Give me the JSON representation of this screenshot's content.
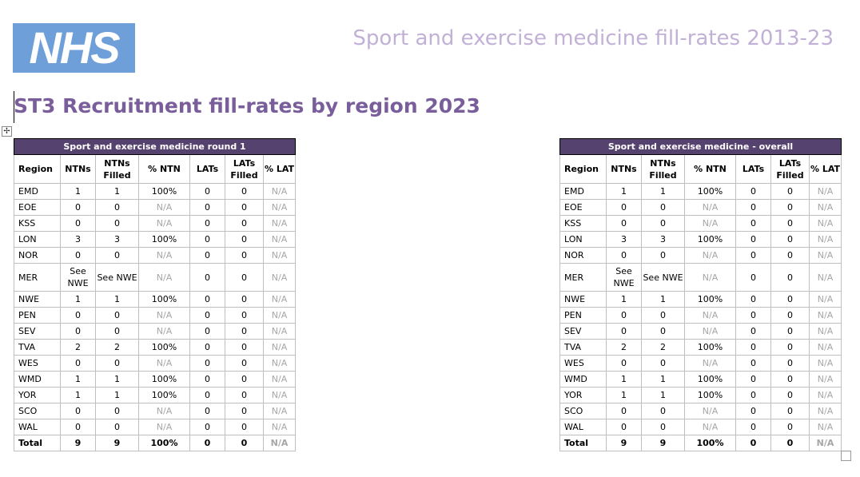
{
  "logo": {
    "text": "NHS",
    "color": "#6f9fd8"
  },
  "header_title": "Sport and exercise medicine fill-rates 2013-23",
  "page_title": "ST3 Recruitment fill-rates by region 2023",
  "columns": [
    "Region",
    "NTNs",
    "NTNs Filled",
    "% NTN",
    "LATs",
    "LATs Filled",
    "% LAT"
  ],
  "tables": [
    {
      "caption": "Sport and exercise medicine round 1",
      "rows": [
        [
          "EMD",
          "1",
          "1",
          "100%",
          "0",
          "0",
          "N/A"
        ],
        [
          "EOE",
          "0",
          "0",
          "N/A",
          "0",
          "0",
          "N/A"
        ],
        [
          "KSS",
          "0",
          "0",
          "N/A",
          "0",
          "0",
          "N/A"
        ],
        [
          "LON",
          "3",
          "3",
          "100%",
          "0",
          "0",
          "N/A"
        ],
        [
          "NOR",
          "0",
          "0",
          "N/A",
          "0",
          "0",
          "N/A"
        ],
        [
          "MER",
          "See NWE",
          "See NWE",
          "N/A",
          "0",
          "0",
          "N/A"
        ],
        [
          "NWE",
          "1",
          "1",
          "100%",
          "0",
          "0",
          "N/A"
        ],
        [
          "PEN",
          "0",
          "0",
          "N/A",
          "0",
          "0",
          "N/A"
        ],
        [
          "SEV",
          "0",
          "0",
          "N/A",
          "0",
          "0",
          "N/A"
        ],
        [
          "TVA",
          "2",
          "2",
          "100%",
          "0",
          "0",
          "N/A"
        ],
        [
          "WES",
          "0",
          "0",
          "N/A",
          "0",
          "0",
          "N/A"
        ],
        [
          "WMD",
          "1",
          "1",
          "100%",
          "0",
          "0",
          "N/A"
        ],
        [
          "YOR",
          "1",
          "1",
          "100%",
          "0",
          "0",
          "N/A"
        ],
        [
          "SCO",
          "0",
          "0",
          "N/A",
          "0",
          "0",
          "N/A"
        ],
        [
          "WAL",
          "0",
          "0",
          "N/A",
          "0",
          "0",
          "N/A"
        ]
      ],
      "total": [
        "Total",
        "9",
        "9",
        "100%",
        "0",
        "0",
        "N/A"
      ]
    },
    {
      "caption": "Sport and exercise medicine - overall",
      "rows": [
        [
          "EMD",
          "1",
          "1",
          "100%",
          "0",
          "0",
          "N/A"
        ],
        [
          "EOE",
          "0",
          "0",
          "N/A",
          "0",
          "0",
          "N/A"
        ],
        [
          "KSS",
          "0",
          "0",
          "N/A",
          "0",
          "0",
          "N/A"
        ],
        [
          "LON",
          "3",
          "3",
          "100%",
          "0",
          "0",
          "N/A"
        ],
        [
          "NOR",
          "0",
          "0",
          "N/A",
          "0",
          "0",
          "N/A"
        ],
        [
          "MER",
          "See NWE",
          "See NWE",
          "N/A",
          "0",
          "0",
          "N/A"
        ],
        [
          "NWE",
          "1",
          "1",
          "100%",
          "0",
          "0",
          "N/A"
        ],
        [
          "PEN",
          "0",
          "0",
          "N/A",
          "0",
          "0",
          "N/A"
        ],
        [
          "SEV",
          "0",
          "0",
          "N/A",
          "0",
          "0",
          "N/A"
        ],
        [
          "TVA",
          "2",
          "2",
          "100%",
          "0",
          "0",
          "N/A"
        ],
        [
          "WES",
          "0",
          "0",
          "N/A",
          "0",
          "0",
          "N/A"
        ],
        [
          "WMD",
          "1",
          "1",
          "100%",
          "0",
          "0",
          "N/A"
        ],
        [
          "YOR",
          "1",
          "1",
          "100%",
          "0",
          "0",
          "N/A"
        ],
        [
          "SCO",
          "0",
          "0",
          "N/A",
          "0",
          "0",
          "N/A"
        ],
        [
          "WAL",
          "0",
          "0",
          "N/A",
          "0",
          "0",
          "N/A"
        ]
      ],
      "total": [
        "Total",
        "9",
        "9",
        "100%",
        "0",
        "0",
        "N/A"
      ]
    }
  ],
  "icons": {
    "move_handle": "move-icon",
    "resize_handle": "resize-icon"
  },
  "colors": {
    "caption_bg": "#56426e",
    "title": "#7a5e9c",
    "header_title": "#c2b1d6",
    "na_text": "#a6a6a6"
  }
}
